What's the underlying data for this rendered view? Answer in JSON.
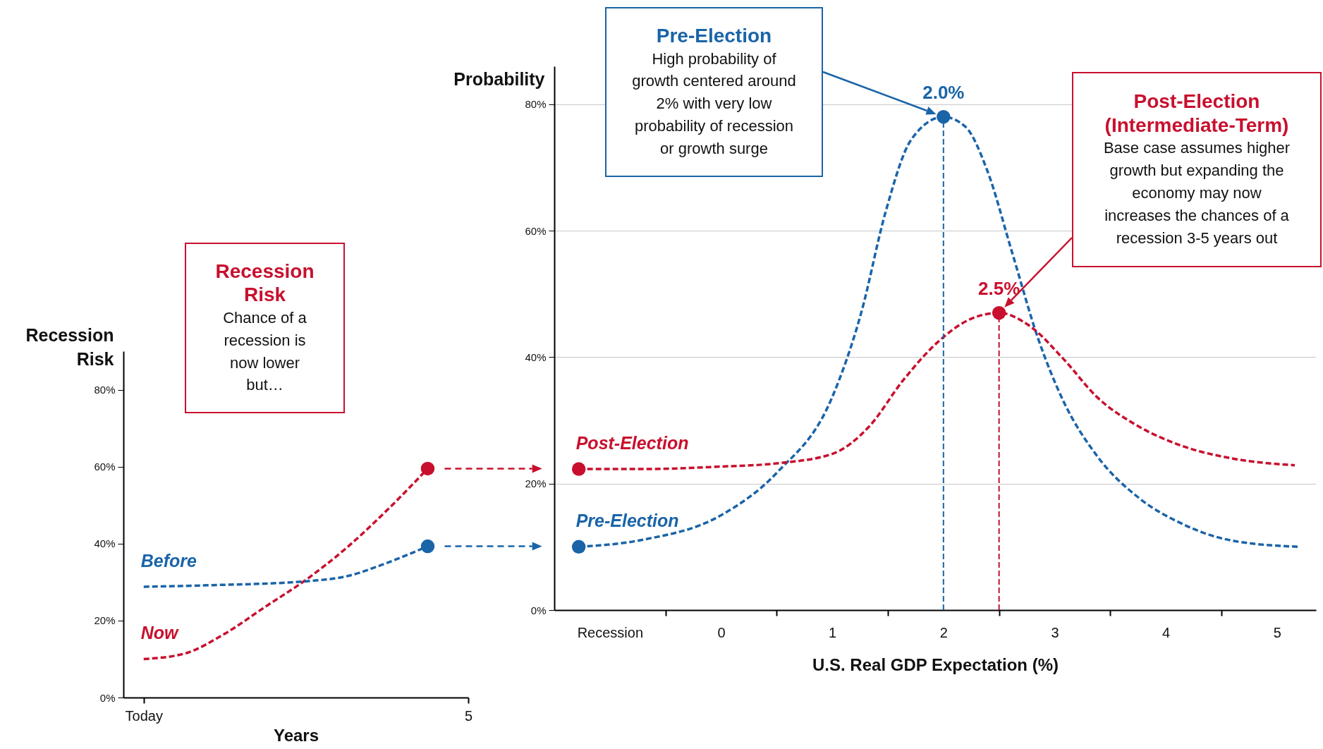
{
  "chart_data": [
    {
      "type": "line",
      "xlabel": "Years",
      "ylabel": "Recession Risk",
      "line_style": "dashed",
      "categories": [
        "Today",
        null,
        null,
        null,
        null,
        null,
        null,
        null,
        "5"
      ],
      "ylim": [
        0,
        90
      ],
      "yticks": [
        {
          "value": 0,
          "label": "0%"
        },
        {
          "value": 20,
          "label": "20%"
        },
        {
          "value": 40,
          "label": "40%"
        },
        {
          "value": 60,
          "label": "60%"
        },
        {
          "value": 80,
          "label": "80%"
        }
      ],
      "series": [
        {
          "name": "Now",
          "color": "#c8102e",
          "values": [
            10,
            11.4,
            16.6,
            23.6,
            30.6,
            38.9,
            48.7,
            59.5,
            null
          ]
        },
        {
          "name": "Before",
          "color": "#1a64a8",
          "values": [
            28.8,
            29,
            29.3,
            29.6,
            30.2,
            31.5,
            35,
            39.3,
            null
          ]
        },
        {
          "type": "scatter",
          "color": "#c8102e",
          "values": [
            null,
            null,
            null,
            null,
            null,
            null,
            null,
            59.5,
            null
          ]
        },
        {
          "type": "scatter",
          "color": "#1a64a8",
          "values": [
            null,
            null,
            null,
            null,
            null,
            null,
            null,
            39.3,
            null
          ]
        }
      ],
      "annotations": [
        "Recession Risk",
        "Chance of a recession is now lower but…"
      ]
    },
    {
      "type": "line",
      "xlabel": "U.S. Real GDP Expectation (%)",
      "ylabel": "Probability",
      "line_style": "dashed",
      "grid": "y",
      "xlim": [
        -1.5,
        5.35
      ],
      "xticks": [
        {
          "value": -1,
          "label": "Recession"
        },
        {
          "value": -0.5,
          "label": null
        },
        0,
        {
          "value": 0.5,
          "label": null
        },
        1,
        {
          "value": 1.5,
          "label": null
        },
        2,
        {
          "value": 2.5,
          "label": null
        },
        3,
        {
          "value": 3.5,
          "label": null
        },
        4,
        {
          "value": 4.5,
          "label": null
        },
        5
      ],
      "ylim": [
        0,
        86
      ],
      "yticks": [
        {
          "value": 0,
          "label": "0%"
        },
        {
          "value": 20,
          "label": "20%"
        },
        {
          "value": 40,
          "label": "40%"
        },
        {
          "value": 60,
          "label": "60%"
        },
        {
          "value": 80,
          "label": "80%"
        }
      ],
      "series": [
        {
          "name": "Pre-Election",
          "color": "#1a64a8",
          "x": [
            -1.28,
            -0.71,
            0,
            0.5,
            1,
            1.26,
            1.48,
            1.71,
            2,
            2.2,
            2.39,
            2.62,
            2.85,
            3.08,
            3.38,
            3.76,
            4.14,
            4.59,
            5.2
          ],
          "values": [
            10,
            11.1,
            15,
            21.7,
            33.7,
            47,
            63,
            74.4,
            78,
            76.4,
            69.7,
            56.4,
            43,
            33,
            24.4,
            17.7,
            13.7,
            11,
            10
          ]
        },
        {
          "name": "Post-Election",
          "color": "#c8102e",
          "x": [
            -1.28,
            -0.71,
            0,
            0.5,
            1,
            1.33,
            1.64,
            1.95,
            2.24,
            2.5,
            2.77,
            3.08,
            3.38,
            3.76,
            4.14,
            4.59,
            5.16
          ],
          "values": [
            22.3,
            22.3,
            22.7,
            23.2,
            24.7,
            29,
            36.4,
            42.4,
            46,
            47,
            45,
            39.7,
            33.7,
            29,
            26,
            24,
            22.9
          ]
        },
        {
          "type": "scatter",
          "color": "#1a64a8",
          "x": [
            -1.28,
            2
          ],
          "values": [
            10,
            78
          ]
        },
        {
          "type": "scatter",
          "color": "#c8102e",
          "x": [
            -1.28,
            2.5
          ],
          "values": [
            22.3,
            47
          ]
        }
      ],
      "ref_lines": [
        {
          "axis": "x",
          "value": 2,
          "color": "#1a64a8",
          "line_style": "dashed"
        },
        {
          "axis": "x",
          "value": 2.5,
          "color": "#c8102e",
          "line_style": "dashed"
        }
      ],
      "annotations": [
        {
          "text": "2.0%",
          "x": 2,
          "y": 78
        },
        {
          "text": "2.5%",
          "x": 2.5,
          "y": 47
        },
        "Pre-Election",
        "High probability of growth centered around 2% with very low probability of recession or growth surge",
        "Post-Election (Intermediate-Term)",
        "Base case assumes higher growth but expanding the economy may now increases the chances of a recession 3-5 years out"
      ]
    }
  ]
}
